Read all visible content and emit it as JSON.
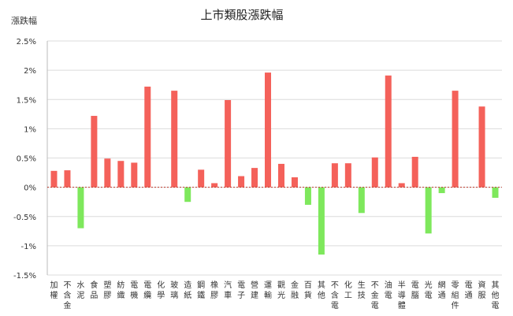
{
  "chart_data": {
    "type": "bar",
    "title": "上市類股漲跌幅",
    "ylabel": "漲跌幅",
    "xlabel": "",
    "ylim": [
      -1.5,
      2.5
    ],
    "yticks": [
      2.5,
      2,
      1.5,
      1,
      0.5,
      0,
      -0.5,
      -1,
      -1.5
    ],
    "ytick_labels": [
      "2.5%",
      "2%",
      "1.5%",
      "1%",
      "0.5%",
      "0%",
      "-0.5%",
      "-1%",
      "-1.5%"
    ],
    "grid": true,
    "colors": {
      "up": "#f4615a",
      "down": "#7ee85c",
      "zero_line": "#c0392b"
    },
    "categories": [
      "加權",
      "不含金",
      "水泥",
      "食品",
      "塑膠",
      "紡織",
      "電機",
      "電纜",
      "化學",
      "玻璃",
      "造紙",
      "鋼鐵",
      "橡膠",
      "汽車",
      "電子",
      "營建",
      "運輸",
      "觀光",
      "金融",
      "百貨",
      "其他",
      "不含電",
      "化工",
      "生技",
      "不金電",
      "油電",
      "半導體",
      "電腦",
      "光電",
      "網通",
      "零組件",
      "電通",
      "資服",
      "其他電"
    ],
    "values": [
      0.28,
      0.29,
      -0.7,
      1.22,
      0.49,
      0.45,
      0.42,
      1.72,
      0.0,
      1.65,
      -0.25,
      0.3,
      0.07,
      1.49,
      0.19,
      0.33,
      1.96,
      0.4,
      0.17,
      -0.3,
      -1.15,
      0.41,
      0.41,
      -0.44,
      0.51,
      1.91,
      0.07,
      0.52,
      -0.79,
      -0.1,
      1.65,
      0.0,
      1.38,
      -0.18
    ]
  }
}
